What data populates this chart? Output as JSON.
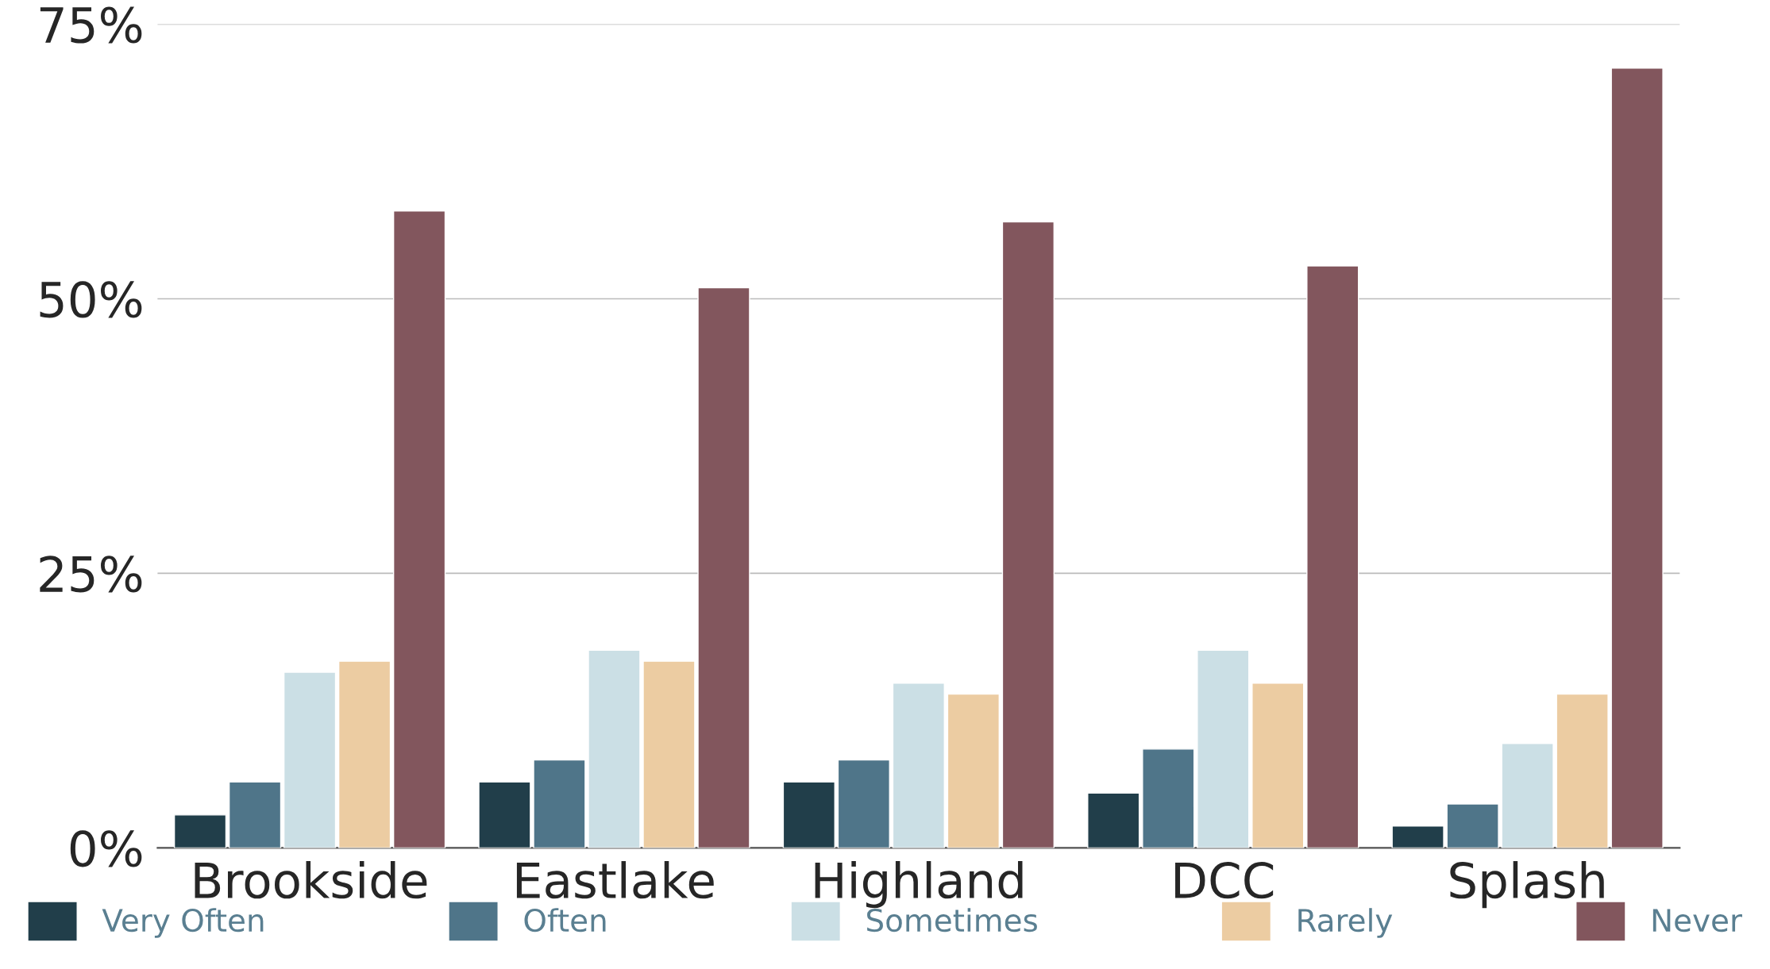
{
  "chart_data": {
    "type": "bar",
    "categories": [
      "Brookside",
      "Eastlake",
      "Highland",
      "DCC",
      "Splash"
    ],
    "series": [
      {
        "name": "Very Often",
        "color": "#213e4a",
        "values": [
          3,
          6,
          6,
          5,
          2
        ]
      },
      {
        "name": "Often",
        "color": "#4f7589",
        "values": [
          6,
          8,
          8,
          9,
          4
        ]
      },
      {
        "name": "Sometimes",
        "color": "#cbdfe5",
        "values": [
          16,
          18,
          15,
          18,
          9.5
        ]
      },
      {
        "name": "Rarely",
        "color": "#eccca2",
        "values": [
          17,
          17,
          14,
          15,
          14
        ]
      },
      {
        "name": "Never",
        "color": "#82565d",
        "values": [
          58,
          51,
          57,
          53,
          71
        ]
      }
    ],
    "ylim": [
      0,
      75
    ],
    "yticks": [
      {
        "value": 0,
        "label": "0%"
      },
      {
        "value": 25,
        "label": "25%"
      },
      {
        "value": 50,
        "label": "50%"
      },
      {
        "value": 75,
        "label": "75%"
      }
    ],
    "grid": "y",
    "legend": "bottom"
  }
}
